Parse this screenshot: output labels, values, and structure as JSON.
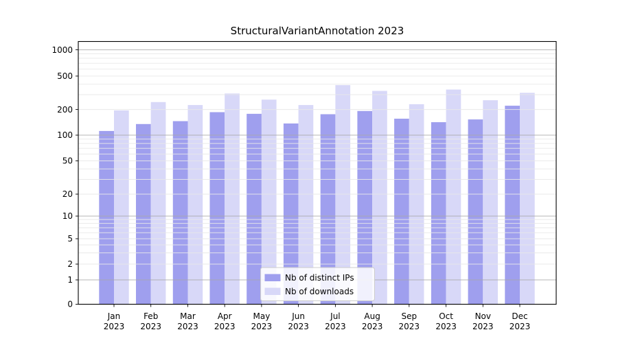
{
  "chart_data": {
    "type": "bar",
    "title": "StructuralVariantAnnotation 2023",
    "year_label": "2023",
    "categories": [
      "Jan",
      "Feb",
      "Mar",
      "Apr",
      "May",
      "Jun",
      "Jul",
      "Aug",
      "Sep",
      "Oct",
      "Nov",
      "Dec"
    ],
    "series": [
      {
        "name": "Nb of distinct IPs",
        "color": "#9f9fee",
        "values": [
          112,
          135,
          146,
          186,
          178,
          137,
          176,
          192,
          156,
          142,
          153,
          222
        ]
      },
      {
        "name": "Nb of downloads",
        "color": "#d8d8f8",
        "values": [
          195,
          245,
          226,
          310,
          262,
          226,
          390,
          333,
          231,
          346,
          258,
          316
        ]
      }
    ],
    "xlabel": "",
    "ylabel": "",
    "y_ticks": [
      0,
      1,
      2,
      5,
      10,
      20,
      50,
      100,
      200,
      500,
      1000
    ],
    "ylim": [
      0,
      1400
    ],
    "scale": "symlog",
    "grid": true,
    "legend_position": "lower center",
    "colors": {
      "major_grid": "#a8a8a8",
      "minor_grid": "#e8e8e8",
      "axis": "#000000",
      "legend_border": "#cccccc"
    }
  }
}
